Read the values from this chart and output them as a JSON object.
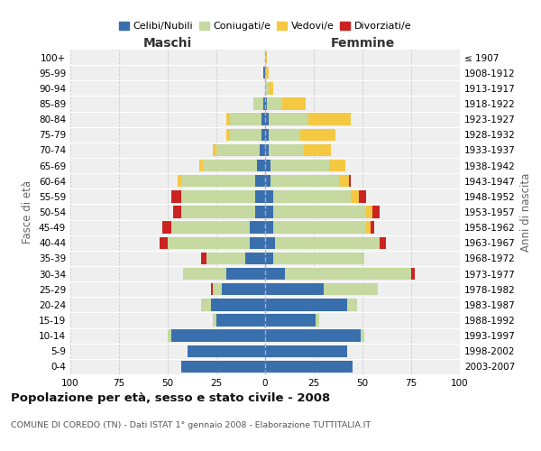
{
  "age_groups": [
    "0-4",
    "5-9",
    "10-14",
    "15-19",
    "20-24",
    "25-29",
    "30-34",
    "35-39",
    "40-44",
    "45-49",
    "50-54",
    "55-59",
    "60-64",
    "65-69",
    "70-74",
    "75-79",
    "80-84",
    "85-89",
    "90-94",
    "95-99",
    "100+"
  ],
  "birth_years": [
    "2003-2007",
    "1998-2002",
    "1993-1997",
    "1988-1992",
    "1983-1987",
    "1978-1982",
    "1973-1977",
    "1968-1972",
    "1963-1967",
    "1958-1962",
    "1953-1957",
    "1948-1952",
    "1943-1947",
    "1938-1942",
    "1933-1937",
    "1928-1932",
    "1923-1927",
    "1918-1922",
    "1913-1917",
    "1908-1912",
    "≤ 1907"
  ],
  "maschi": {
    "celibi": [
      43,
      40,
      48,
      25,
      28,
      22,
      20,
      10,
      8,
      8,
      5,
      5,
      5,
      4,
      3,
      2,
      2,
      1,
      0,
      1,
      0
    ],
    "coniugati": [
      0,
      0,
      2,
      2,
      5,
      5,
      22,
      20,
      42,
      40,
      38,
      38,
      38,
      28,
      22,
      16,
      16,
      5,
      0,
      0,
      0
    ],
    "vedovi": [
      0,
      0,
      0,
      0,
      0,
      0,
      0,
      0,
      0,
      0,
      0,
      0,
      2,
      2,
      2,
      2,
      2,
      0,
      0,
      0,
      0
    ],
    "divorziati": [
      0,
      0,
      0,
      0,
      0,
      1,
      0,
      3,
      4,
      5,
      4,
      5,
      0,
      0,
      0,
      0,
      0,
      0,
      0,
      0,
      0
    ]
  },
  "femmine": {
    "nubili": [
      45,
      42,
      49,
      26,
      42,
      30,
      10,
      4,
      5,
      4,
      4,
      4,
      3,
      3,
      2,
      2,
      2,
      1,
      0,
      0,
      0
    ],
    "coniugate": [
      0,
      0,
      2,
      2,
      5,
      28,
      65,
      47,
      54,
      48,
      48,
      40,
      35,
      30,
      18,
      16,
      20,
      8,
      2,
      0,
      0
    ],
    "vedove": [
      0,
      0,
      0,
      0,
      0,
      0,
      0,
      0,
      0,
      2,
      3,
      4,
      5,
      8,
      14,
      18,
      22,
      12,
      2,
      2,
      1
    ],
    "divorziate": [
      0,
      0,
      0,
      0,
      0,
      0,
      2,
      0,
      3,
      2,
      4,
      4,
      1,
      0,
      0,
      0,
      0,
      0,
      0,
      0,
      0
    ]
  },
  "colors": {
    "celibi_nubili": "#3a6fad",
    "coniugati": "#c5d9a0",
    "vedovi": "#f5c842",
    "divorziati": "#cc2222"
  },
  "xlim": 100,
  "title": "Popolazione per età, sesso e stato civile - 2008",
  "subtitle": "COMUNE DI COREDO (TN) - Dati ISTAT 1° gennaio 2008 - Elaborazione TUTTITALIA.IT",
  "xlabel_left": "Maschi",
  "xlabel_right": "Femmine",
  "ylabel_left": "Fasce di età",
  "ylabel_right": "Anni di nascita",
  "legend_labels": [
    "Celibi/Nubili",
    "Coniugati/e",
    "Vedovi/e",
    "Divorziati/e"
  ],
  "background_color": "#ffffff",
  "plot_bg_color": "#efefef",
  "grid_color": "#cccccc"
}
